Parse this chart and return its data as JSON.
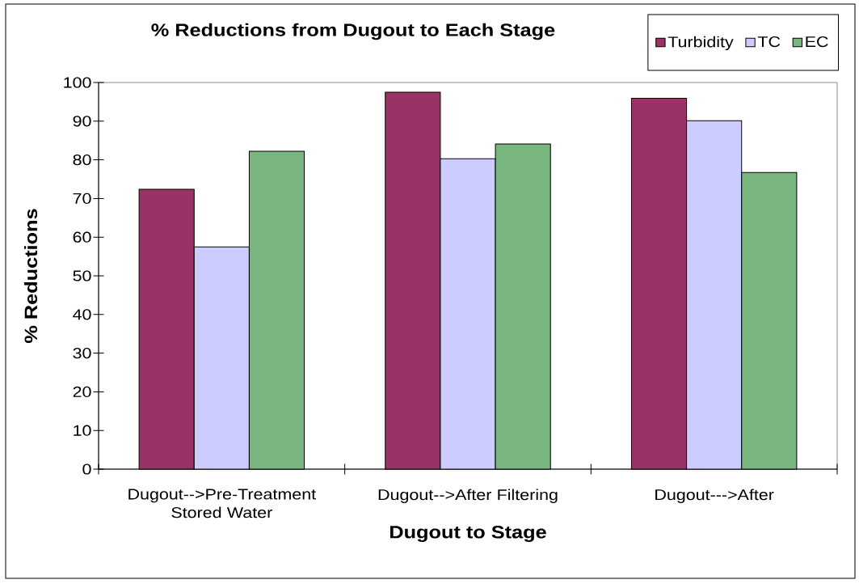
{
  "chart_data": {
    "type": "bar",
    "title": "% Reductions from Dugout to Each Stage",
    "xlabel": "Dugout to Stage",
    "ylabel": "% Reductions",
    "categories": [
      "Dugout-->Pre-Treatment Stored Water",
      "Dugout-->After Filtering",
      "Dugout--->After"
    ],
    "series": [
      {
        "name": "Turbidity",
        "color": "#993366",
        "values": [
          72.4,
          97.5,
          95.9
        ]
      },
      {
        "name": "TC",
        "color": "#ccccff",
        "values": [
          57.5,
          80.3,
          90.1
        ]
      },
      {
        "name": "EC",
        "color": "#79b57f",
        "values": [
          82.2,
          84.1,
          76.7
        ]
      }
    ],
    "ylim": [
      0,
      100
    ],
    "yticks": [
      0,
      10,
      20,
      30,
      40,
      50,
      60,
      70,
      80,
      90,
      100
    ],
    "legend": "top right"
  }
}
